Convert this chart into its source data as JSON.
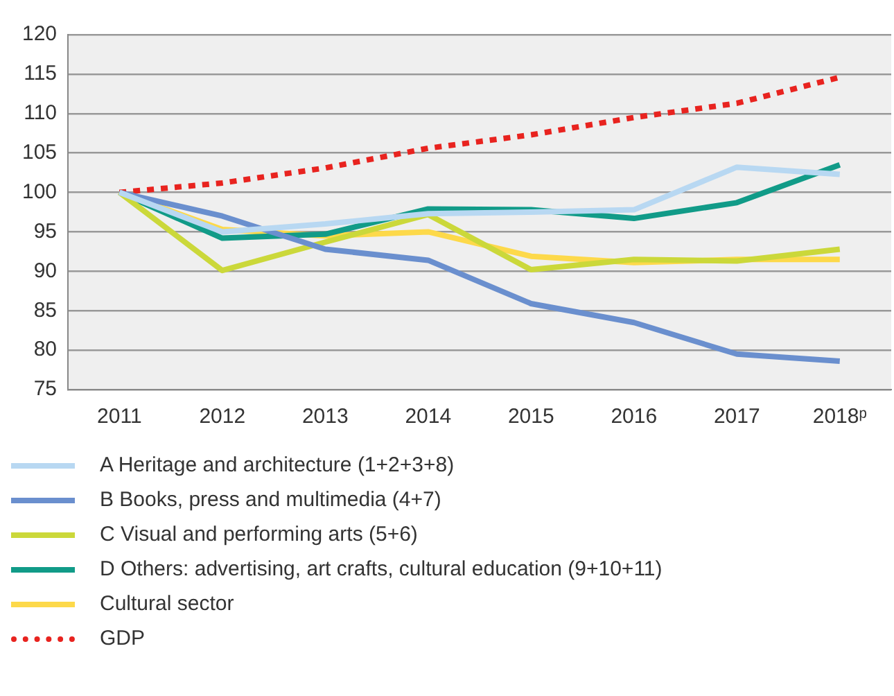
{
  "chart_data": {
    "type": "line",
    "categories": [
      "2011",
      "2012",
      "2013",
      "2014",
      "2015",
      "2016",
      "2017",
      "2018ᵖ"
    ],
    "ylim": [
      75,
      120
    ],
    "yticks": [
      75,
      80,
      85,
      90,
      95,
      100,
      105,
      110,
      115,
      120
    ],
    "grid": "y",
    "legend": "bottom",
    "marker": "none",
    "series": [
      {
        "name": "A Heritage and architecture (1+2+3+8)",
        "color": "#b8d8f2",
        "values": [
          100,
          95.0,
          96.0,
          97.3,
          97.5,
          97.8,
          103.2,
          102.3
        ]
      },
      {
        "name": "B Books, press and multimedia (4+7)",
        "color": "#6a8fce",
        "values": [
          100,
          97.0,
          92.8,
          91.4,
          85.9,
          83.5,
          79.5,
          78.6
        ]
      },
      {
        "name": "C Visual and performing arts (5+6)",
        "color": "#cbd83a",
        "values": [
          100,
          90.1,
          93.7,
          97.2,
          90.2,
          91.5,
          91.3,
          92.8
        ]
      },
      {
        "name": "D Others: advertising, art crafts, cultural education (9+10+11)",
        "color": "#119b88",
        "values": [
          100,
          94.2,
          94.7,
          97.9,
          97.8,
          96.7,
          98.7,
          103.5
        ]
      },
      {
        "name": "Cultural sector",
        "color": "#fdd94a",
        "values": [
          100,
          95.3,
          94.5,
          95.0,
          91.9,
          91.1,
          91.5,
          91.5
        ]
      },
      {
        "name": "GDP",
        "color": "#e8231f",
        "line_style": "dotted",
        "values": [
          100,
          101.2,
          103.1,
          105.6,
          107.3,
          109.5,
          111.3,
          114.6
        ]
      }
    ]
  }
}
